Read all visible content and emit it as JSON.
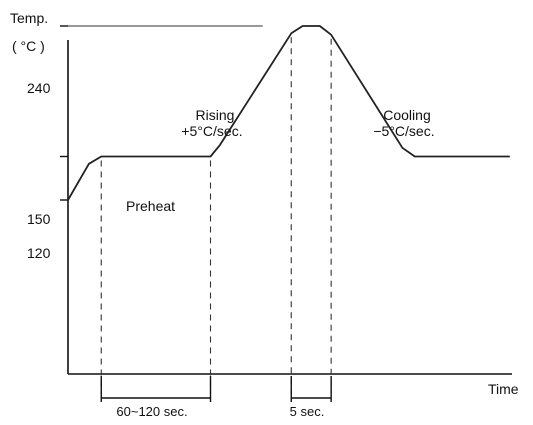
{
  "chart_data": {
    "type": "line",
    "title": "",
    "ylabel": "Temp.",
    "yunit": "( °C )",
    "xlabel": "Time",
    "y_ticks": [
      {
        "value": 240,
        "label": "240"
      },
      {
        "value": 150,
        "label": "150"
      },
      {
        "value": 120,
        "label": "120"
      }
    ],
    "y_range": [
      0,
      300
    ],
    "x_range": [
      0,
      500
    ],
    "series": [
      {
        "points": [
          [
            0,
            120
          ],
          [
            22,
            145
          ],
          [
            35,
            150
          ],
          [
            150,
            150
          ],
          [
            160,
            158
          ],
          [
            235,
            235
          ],
          [
            247,
            240
          ],
          [
            265,
            240
          ],
          [
            277,
            234
          ],
          [
            352,
            156
          ],
          [
            365,
            150
          ],
          [
            465,
            150
          ]
        ]
      }
    ],
    "reference_lines": [
      {
        "y": 240,
        "x_start": 0,
        "x_end": 205
      }
    ],
    "phase_markers_x": [
      35,
      150,
      235,
      277
    ],
    "spans": [
      {
        "x_start": 35,
        "x_end": 150,
        "label": "60~120  sec."
      },
      {
        "x_start": 235,
        "x_end": 277,
        "label": "5  sec."
      }
    ],
    "annotations": [
      {
        "id": "preheat",
        "lines": [
          "Preheat"
        ]
      },
      {
        "id": "rising",
        "lines": [
          "Rising",
          "+5°C/sec."
        ]
      },
      {
        "id": "cooling",
        "lines": [
          "Cooling",
          "−5°C/sec."
        ]
      }
    ],
    "grid": false,
    "legend": "none"
  }
}
